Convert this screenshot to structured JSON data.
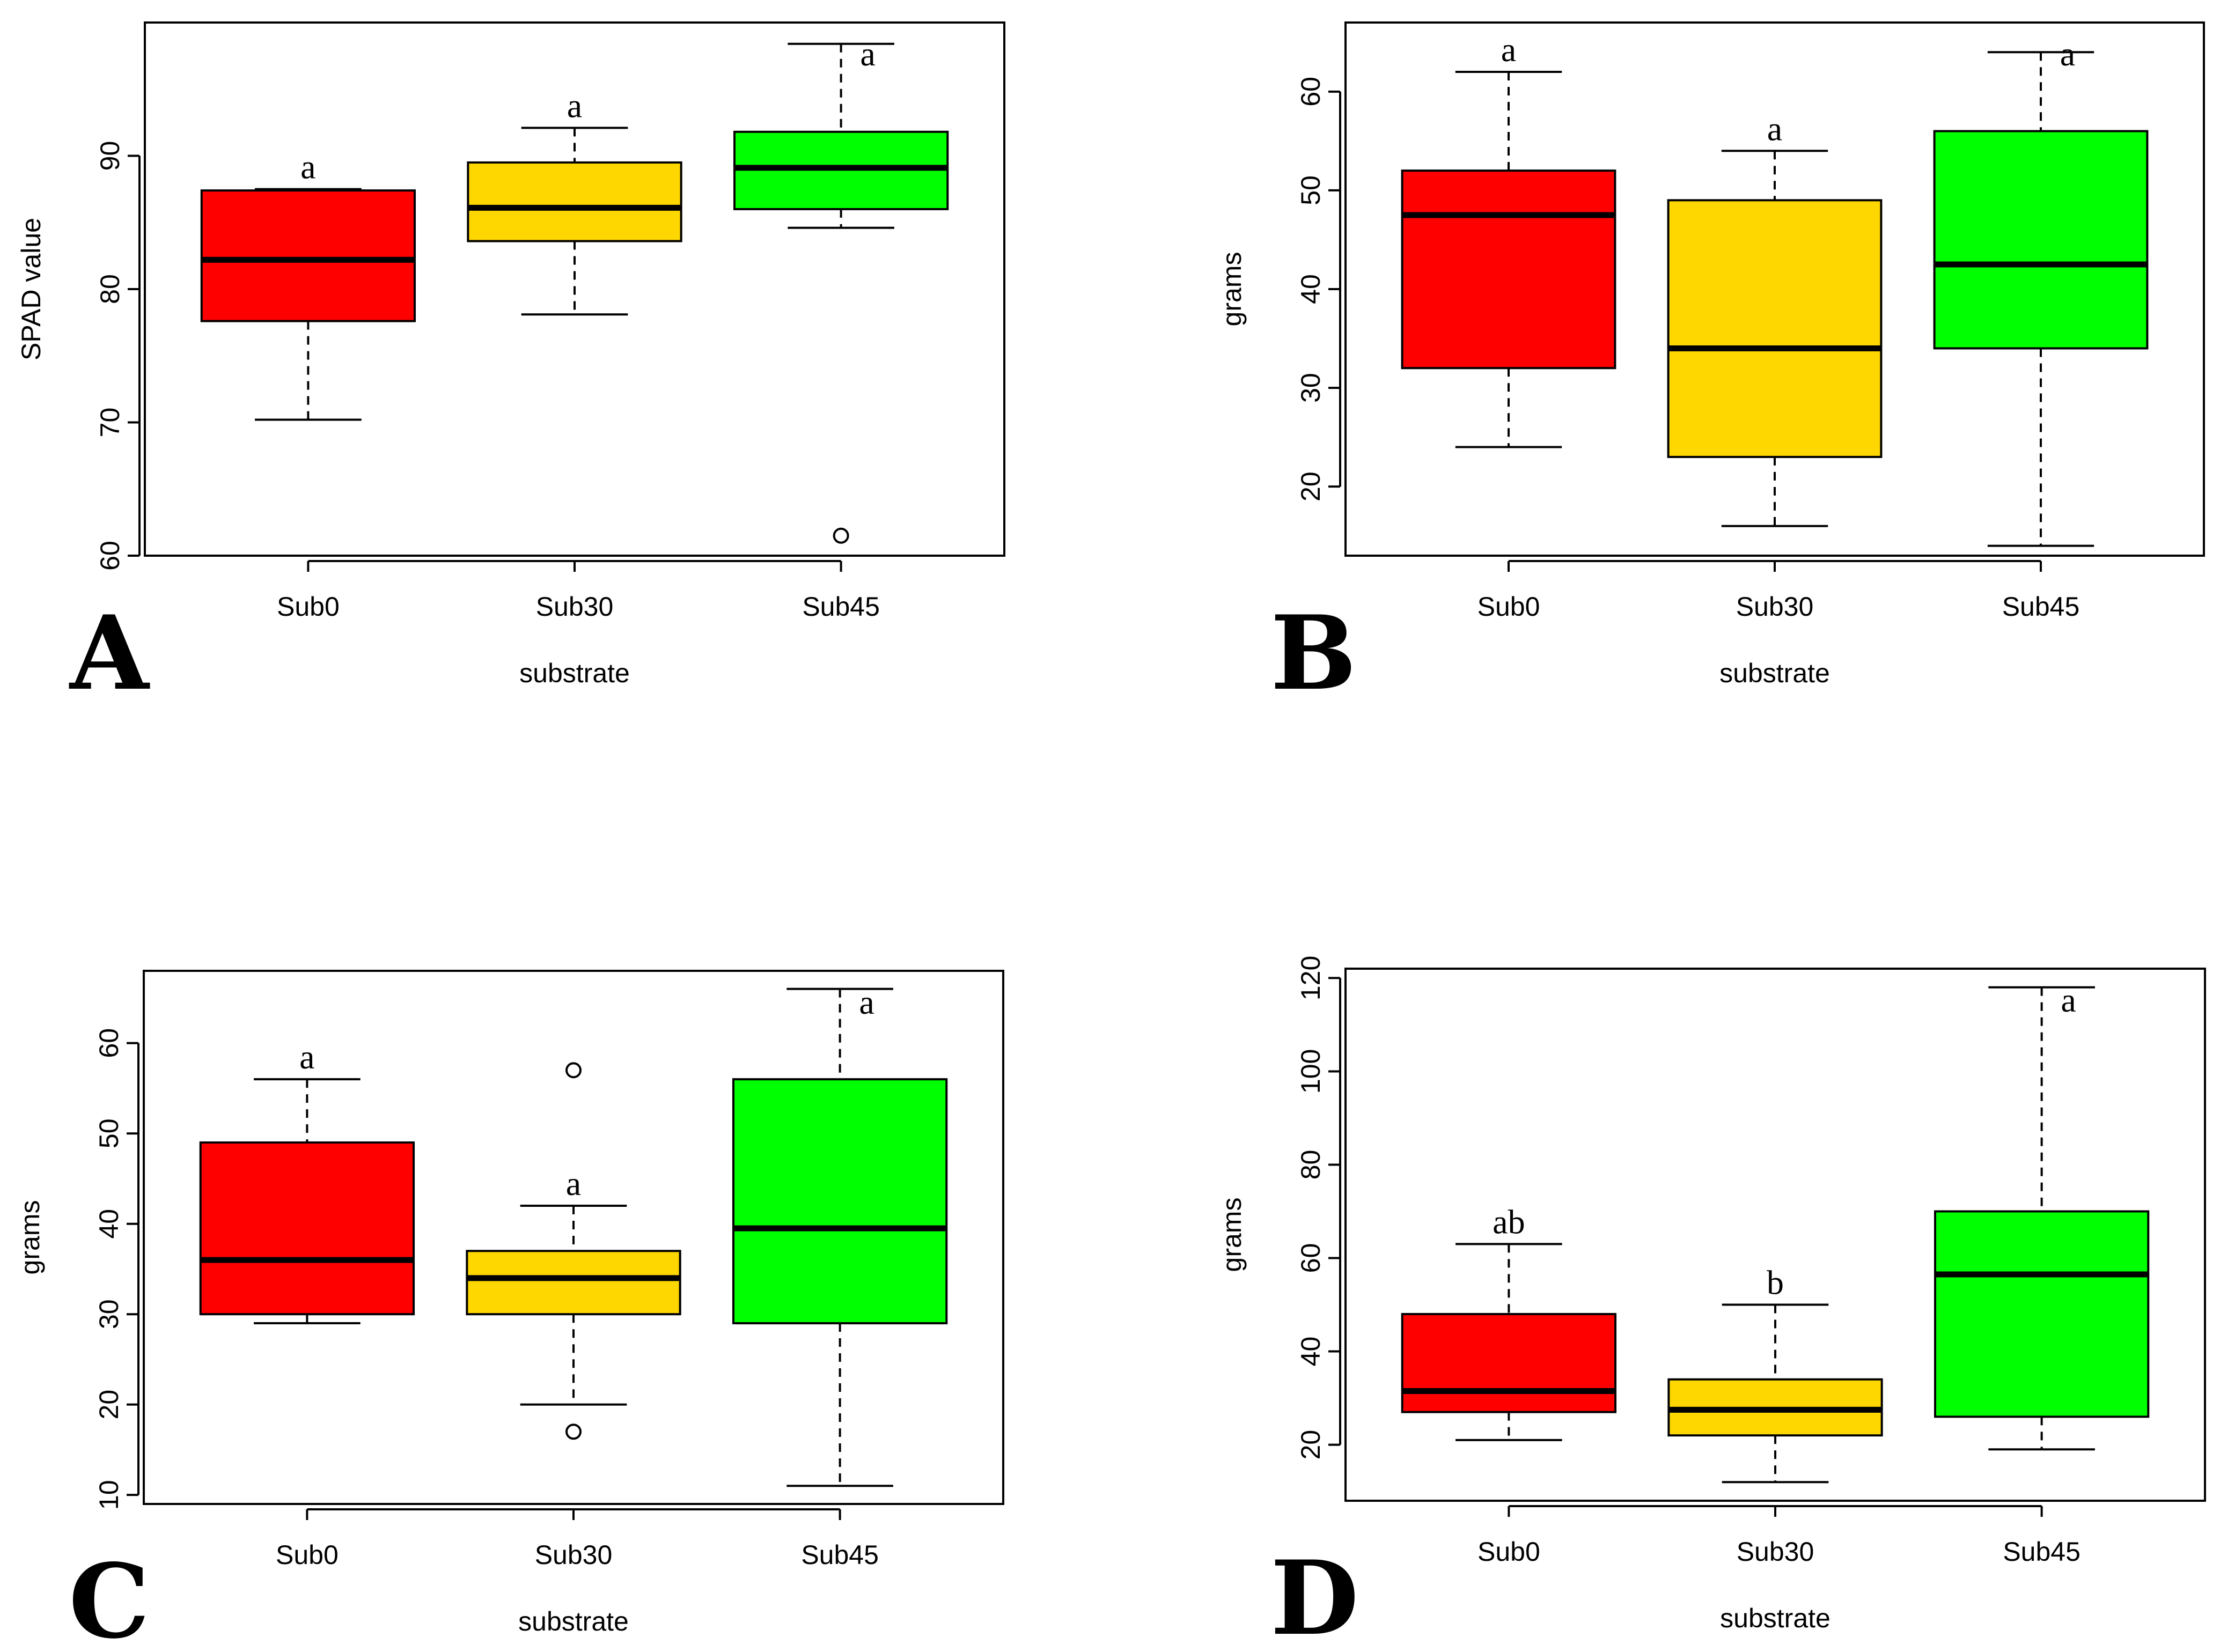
{
  "chart_data": [
    {
      "panel": "A",
      "type": "boxplot",
      "xlabel": "substrate",
      "ylabel": "SPAD value",
      "ylim": [
        60,
        100
      ],
      "yticks": [
        60,
        70,
        80,
        90
      ],
      "categories": [
        "Sub0",
        "Sub30",
        "Sub45"
      ],
      "colors": [
        "#ff0000",
        "#ffd700",
        "#00ff00"
      ],
      "boxes": [
        {
          "category": "Sub0",
          "whisker_low": 70.2,
          "q1": 77.6,
          "median": 82.2,
          "q3": 87.4,
          "whisker_high": 87.5,
          "outliers": [],
          "letter": "a"
        },
        {
          "category": "Sub30",
          "whisker_low": 78.1,
          "q1": 83.6,
          "median": 86.1,
          "q3": 89.5,
          "whisker_high": 92.1,
          "outliers": [],
          "letter": "a"
        },
        {
          "category": "Sub45",
          "whisker_low": 84.6,
          "q1": 86.0,
          "median": 89.1,
          "q3": 91.8,
          "whisker_high": 98.4,
          "outliers": [
            61.5
          ],
          "letter": "a"
        }
      ]
    },
    {
      "panel": "B",
      "type": "boxplot",
      "xlabel": "substrate",
      "ylabel": "grams",
      "ylim": [
        13,
        67
      ],
      "yticks": [
        20,
        30,
        40,
        50,
        60
      ],
      "categories": [
        "Sub0",
        "Sub30",
        "Sub45"
      ],
      "colors": [
        "#ff0000",
        "#ffd700",
        "#00ff00"
      ],
      "boxes": [
        {
          "category": "Sub0",
          "whisker_low": 24,
          "q1": 32,
          "median": 47.5,
          "q3": 52,
          "whisker_high": 62,
          "outliers": [],
          "letter": "a"
        },
        {
          "category": "Sub30",
          "whisker_low": 16,
          "q1": 23,
          "median": 34,
          "q3": 49,
          "whisker_high": 54,
          "outliers": [],
          "letter": "a"
        },
        {
          "category": "Sub45",
          "whisker_low": 14,
          "q1": 34,
          "median": 42.5,
          "q3": 56,
          "whisker_high": 64,
          "outliers": [],
          "letter": "a"
        }
      ]
    },
    {
      "panel": "C",
      "type": "boxplot",
      "xlabel": "substrate",
      "ylabel": "grams",
      "ylim": [
        9,
        68
      ],
      "yticks": [
        10,
        20,
        30,
        40,
        50,
        60
      ],
      "categories": [
        "Sub0",
        "Sub30",
        "Sub45"
      ],
      "colors": [
        "#ff0000",
        "#ffd700",
        "#00ff00"
      ],
      "boxes": [
        {
          "category": "Sub0",
          "whisker_low": 29,
          "q1": 30,
          "median": 36,
          "q3": 49,
          "whisker_high": 56,
          "outliers": [],
          "letter": "a"
        },
        {
          "category": "Sub30",
          "whisker_low": 20,
          "q1": 30,
          "median": 34,
          "q3": 37,
          "whisker_high": 42,
          "outliers": [
            57,
            17
          ],
          "letter": "a"
        },
        {
          "category": "Sub45",
          "whisker_low": 11,
          "q1": 29,
          "median": 39.5,
          "q3": 56,
          "whisker_high": 66,
          "outliers": [],
          "letter": "a"
        }
      ]
    },
    {
      "panel": "D",
      "type": "boxplot",
      "xlabel": "substrate",
      "ylabel": "grams",
      "ylim": [
        8,
        122
      ],
      "yticks": [
        20,
        40,
        60,
        80,
        100,
        120
      ],
      "categories": [
        "Sub0",
        "Sub30",
        "Sub45"
      ],
      "colors": [
        "#ff0000",
        "#ffd700",
        "#00ff00"
      ],
      "boxes": [
        {
          "category": "Sub0",
          "whisker_low": 21,
          "q1": 27,
          "median": 31.5,
          "q3": 48,
          "whisker_high": 63,
          "outliers": [],
          "letter": "ab"
        },
        {
          "category": "Sub30",
          "whisker_low": 12,
          "q1": 22,
          "median": 27.5,
          "q3": 34,
          "whisker_high": 50,
          "outliers": [],
          "letter": "b"
        },
        {
          "category": "Sub45",
          "whisker_low": 19,
          "q1": 26,
          "median": 56.5,
          "q3": 70,
          "whisker_high": 118,
          "outliers": [],
          "letter": "a"
        }
      ]
    }
  ]
}
